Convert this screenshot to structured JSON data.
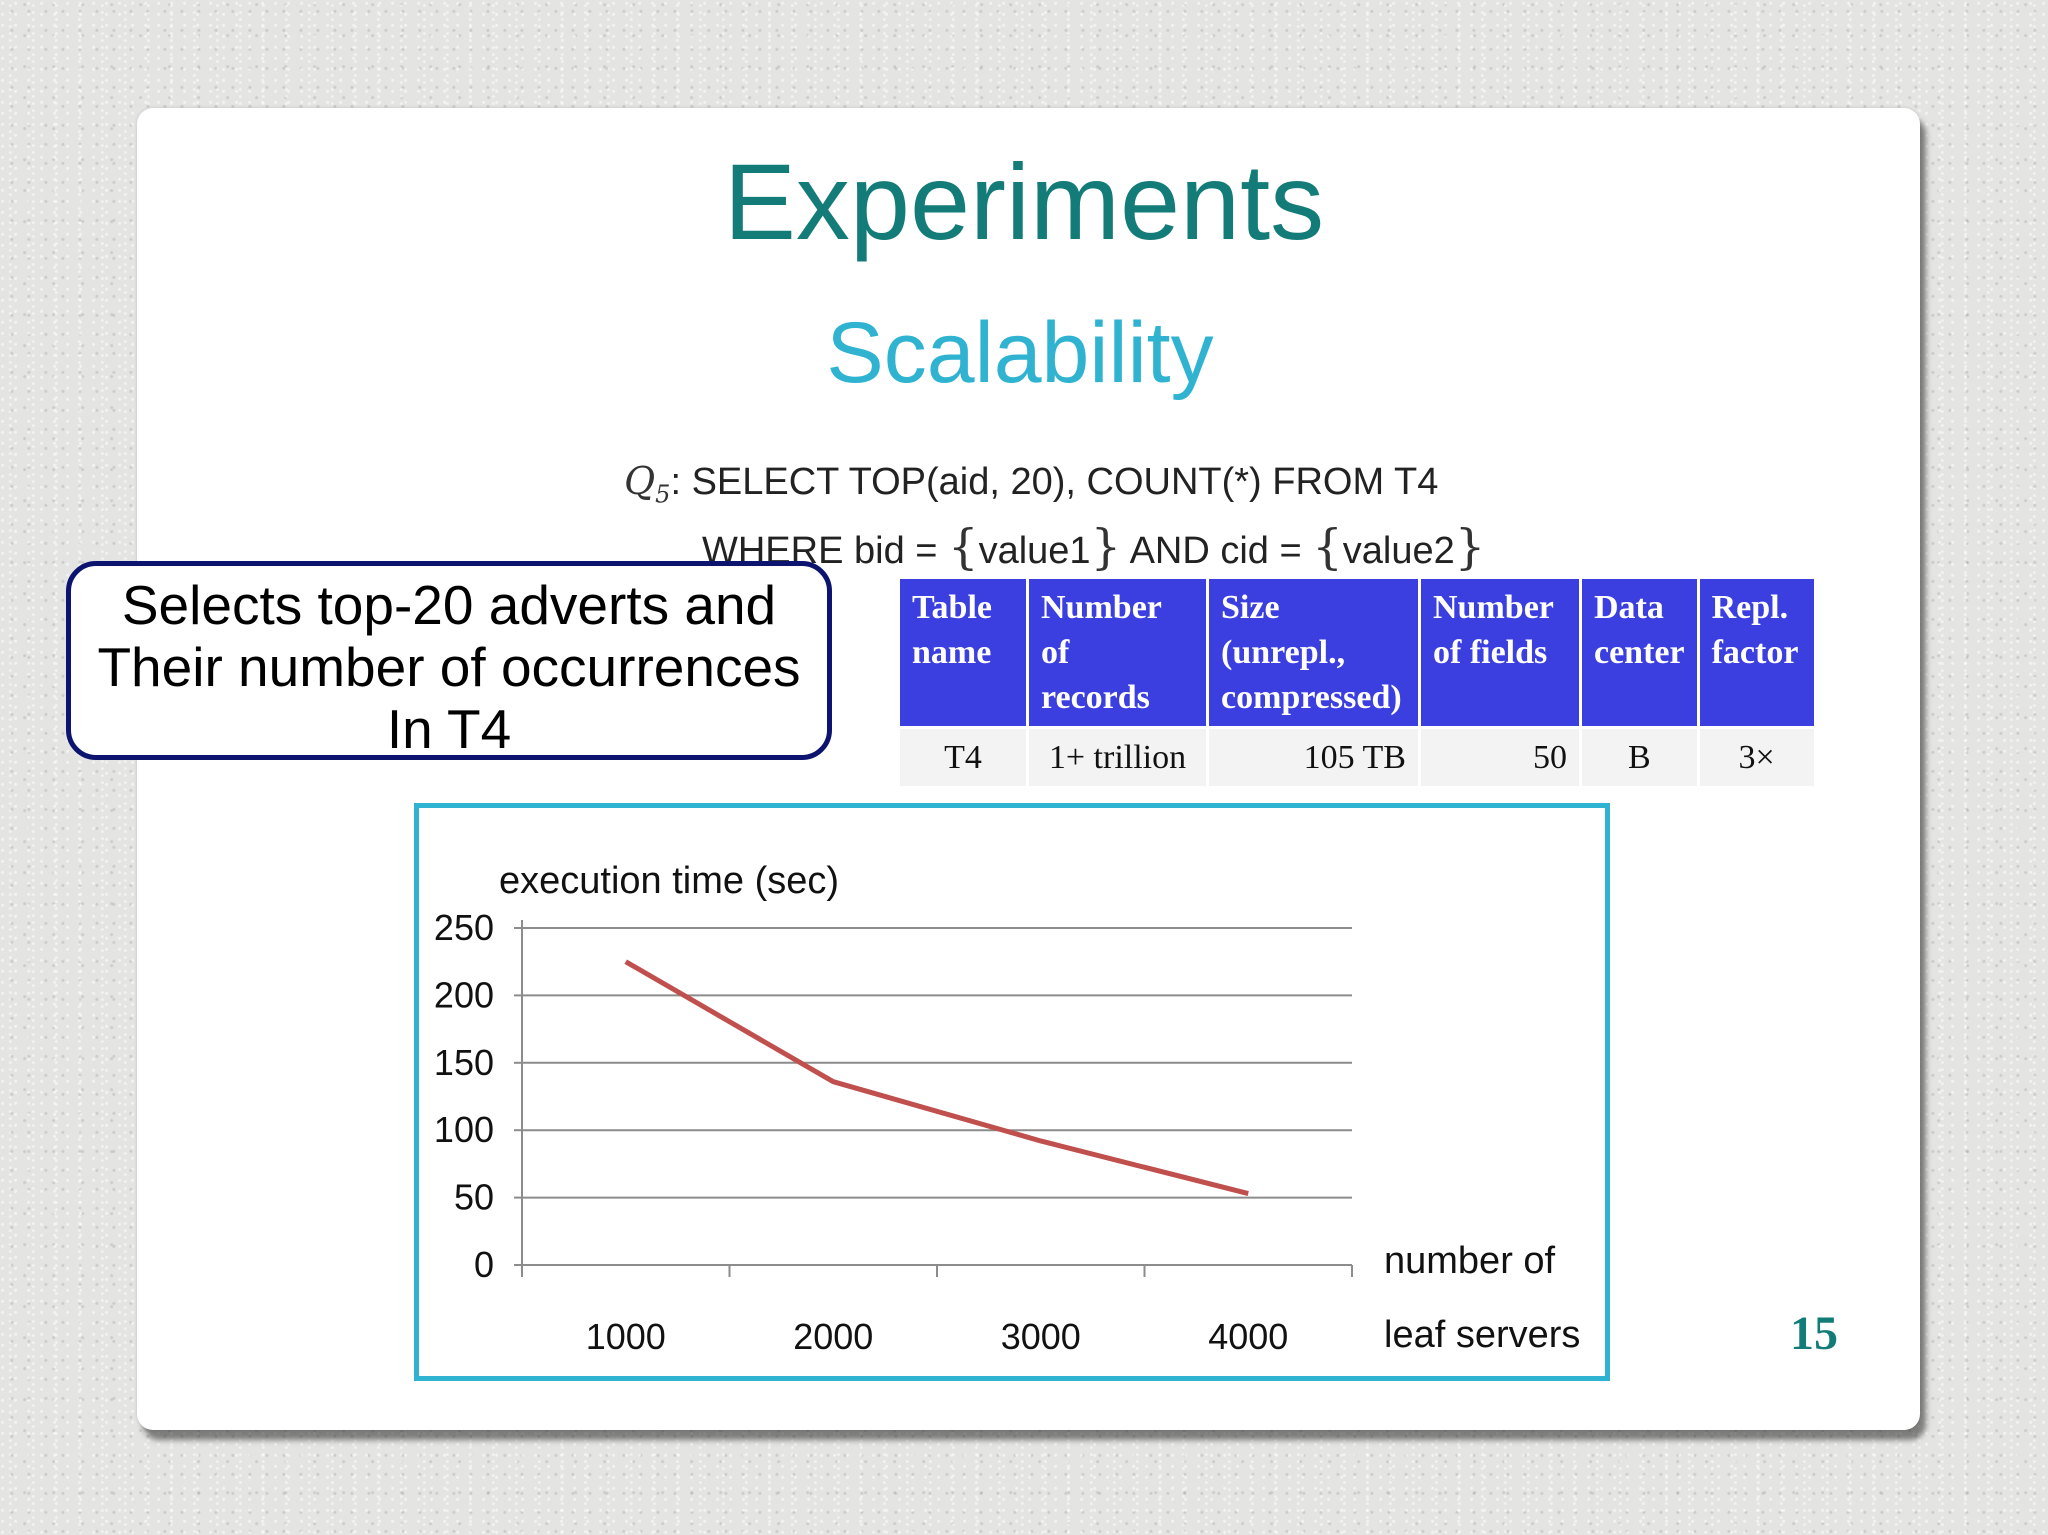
{
  "slide": {
    "title": "Experiments",
    "subtitle": "Scalability",
    "page_number": "15",
    "title_color": "#147c78",
    "subtitle_color": "#2fb3d1"
  },
  "query": {
    "label": "Q",
    "label_sub": "5",
    "line1": "SELECT TOP(aid, 20), COUNT(*) FROM T4",
    "line2_a": "WHERE bid = ",
    "value1": "value1",
    "line2_b": " AND cid = ",
    "value2": "value2"
  },
  "callout": {
    "lines": [
      "Selects top-20 adverts and",
      "Their number of occurrences",
      "In T4"
    ]
  },
  "table": {
    "headers": [
      [
        "Table",
        "name"
      ],
      [
        "Number of",
        "records"
      ],
      [
        "Size (unrepl.,",
        "compressed)"
      ],
      [
        "Number",
        "of fields"
      ],
      [
        "Data",
        "center"
      ],
      [
        "Repl.",
        "factor"
      ]
    ],
    "row": [
      "T4",
      "1+ trillion",
      "105 TB",
      "50",
      "B",
      "3×"
    ],
    "header_color": "#3c3fe0"
  },
  "chart_data": {
    "type": "line",
    "ylabel": "execution time (sec)",
    "xlabel_lines": [
      "number of",
      "leaf servers"
    ],
    "x": [
      1000,
      2000,
      3000,
      4000
    ],
    "series": [
      {
        "values": [
          225,
          136,
          92,
          53
        ],
        "color": "#c0504d"
      }
    ],
    "ylim": [
      0,
      250
    ],
    "yticks": [
      0,
      50,
      100,
      150,
      200,
      250
    ],
    "xticks": [
      1000,
      2000,
      3000,
      4000
    ],
    "grid": true
  }
}
